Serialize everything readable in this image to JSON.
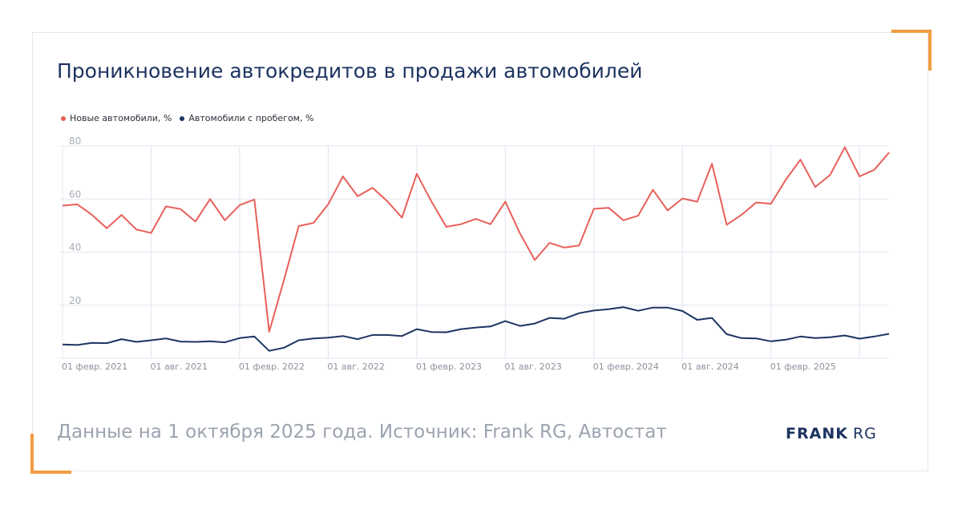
{
  "title": "Проникновение автокредитов в продажи автомобилей",
  "footer": "Данные на 1 октября 2025 года. Источник: Frank RG, Автостат",
  "logo": {
    "word1": "FRANK",
    "word2": "RG"
  },
  "colors": {
    "accent": "#f29d43",
    "new_series": "#e8605a",
    "used_series": "#1d3461",
    "grid": "#e4e3f2"
  },
  "chart_data": {
    "type": "line",
    "title": "Проникновение автокредитов в продажи автомобилей",
    "xlabel": "",
    "ylabel": "",
    "ylim": [
      0,
      80
    ],
    "yticks": [
      20,
      40,
      60,
      80
    ],
    "grid": true,
    "legend_position": "top-left",
    "x_tick_labels": [
      "01 февр. 2021",
      "01 авг. 2021",
      "01 февр. 2022",
      "01 авг. 2022",
      "01 февр. 2023",
      "01 авг. 2023",
      "01 февр. 2024",
      "01 авг. 2024",
      "01 февр. 2025"
    ],
    "x_start": "2021-02",
    "x_end": "2025-09",
    "series": [
      {
        "name": "Новые автомобили, %",
        "color": "#e8605a",
        "values": [
          57.5,
          58,
          54,
          49,
          54,
          48.5,
          47.2,
          57.2,
          56.2,
          51.5,
          60,
          52,
          57.7,
          59.8,
          10,
          29.5,
          49.8,
          51,
          58,
          68.5,
          61,
          64.2,
          59.2,
          53,
          69.5,
          59,
          49.5,
          50.5,
          52.5,
          50.5,
          59,
          47,
          37,
          43.5,
          41.7,
          42.5,
          56.3,
          56.7,
          52,
          53.7,
          63.5,
          55.7,
          60.2,
          59,
          73.3,
          50.3,
          54,
          58.7,
          58.2,
          67.2,
          74.8,
          64.5,
          69,
          79.5,
          68.5,
          71,
          77.5
        ]
      },
      {
        "name": "Автомобили с пробегом, %",
        "color": "#1d3461",
        "values": [
          5.2,
          5,
          5.8,
          5.7,
          7.2,
          6.2,
          6.8,
          7.5,
          6.3,
          6.2,
          6.4,
          6,
          7.6,
          8.2,
          2.8,
          4,
          6.8,
          7.5,
          7.8,
          8.4,
          7.2,
          8.8,
          8.8,
          8.4,
          11,
          9.9,
          9.8,
          11,
          11.6,
          12,
          14,
          12.2,
          13.1,
          15.2,
          14.9,
          17,
          18,
          18.5,
          19.3,
          17.9,
          19.1,
          19.1,
          17.8,
          14.5,
          15.2,
          9.1,
          7.6,
          7.5,
          6.4,
          7,
          8.2,
          7.6,
          7.9,
          8.6,
          7.4,
          8.2,
          9.2
        ]
      }
    ]
  }
}
